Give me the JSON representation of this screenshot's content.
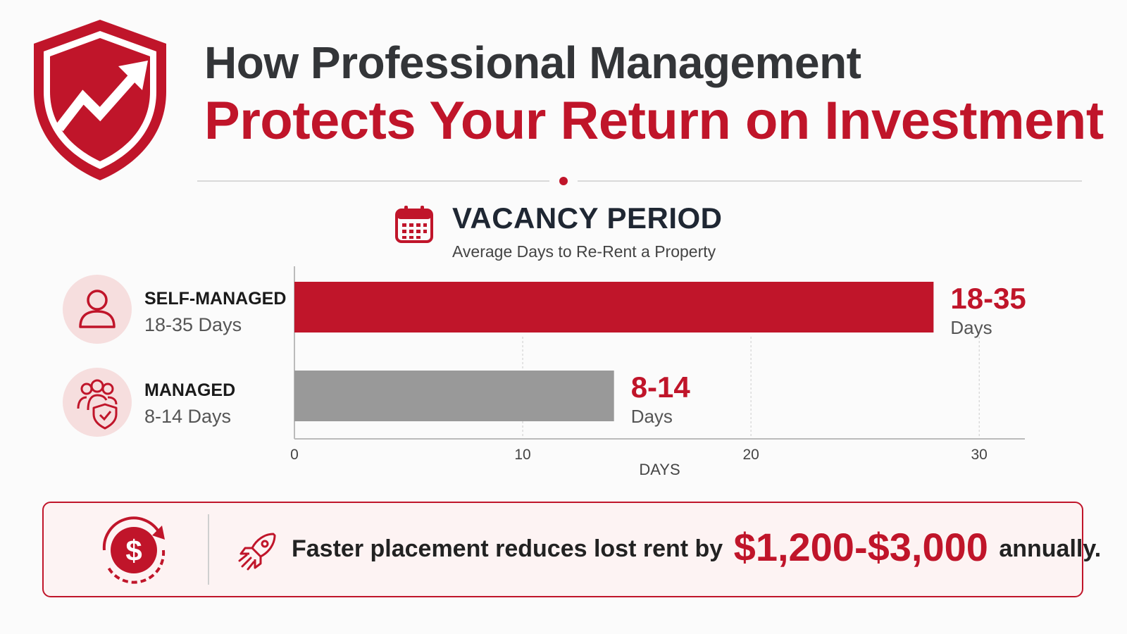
{
  "header": {
    "title_line1": "How Professional Management",
    "title_line2": "Protects Your Return on Investment"
  },
  "section": {
    "title": "VACANCY PERIOD",
    "subtitle": "Average Days to Re-Rent a Property"
  },
  "categories": [
    {
      "name": "SELF-MANAGED",
      "detail": "18-35 Days"
    },
    {
      "name": "MANAGED",
      "detail": "8-14 Days"
    }
  ],
  "chart_data": {
    "type": "bar",
    "orientation": "horizontal",
    "categories": [
      "SELF-MANAGED",
      "MANAGED"
    ],
    "values": [
      28,
      14
    ],
    "value_labels": [
      "18-35",
      "8-14"
    ],
    "value_unit": "Days",
    "xlabel": "DAYS",
    "xlim": [
      0,
      32
    ],
    "ticks": [
      0,
      10,
      20,
      30
    ],
    "grid": "vertical dashed",
    "colors": [
      "#c0152a",
      "#999999"
    ],
    "label_color": "#c0152a"
  },
  "callout": {
    "text_before": "Faster placement reduces lost rent by",
    "amount": "$1,200-$3,000",
    "text_after": "annually."
  },
  "colors": {
    "accent": "#c0152a",
    "dark_text": "#1f2733",
    "grey_bar": "#999999",
    "soft_pink": "#f6dede"
  },
  "icons": {
    "shield": "shield-chart-icon",
    "calendar": "calendar-icon",
    "self": "person-icon",
    "managed": "group-shield-icon",
    "dollar": "dollar-cycle-icon",
    "rocket": "rocket-icon"
  }
}
